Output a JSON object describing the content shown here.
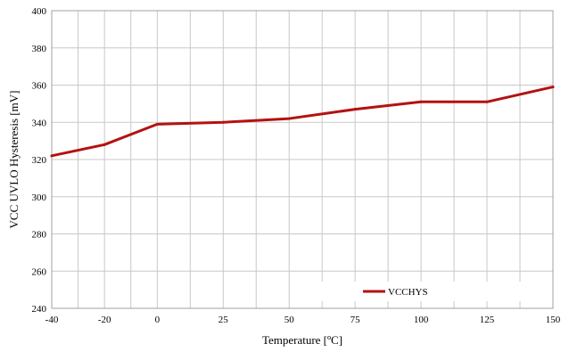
{
  "chart_data": {
    "type": "line",
    "x": [
      -40,
      -20,
      0,
      25,
      50,
      75,
      100,
      125,
      150
    ],
    "series": [
      {
        "name": "VCCHYS",
        "values": [
          322,
          328,
          339,
          340,
          342,
          347,
          351,
          351,
          359
        ],
        "color": "#b31212"
      }
    ],
    "xlabel": "Temperature [ºC]",
    "ylabel": "VCC UVLO Hysteresis [mV]",
    "xlim": [
      -40,
      150
    ],
    "ylim": [
      240,
      400
    ],
    "xticks": [
      -40,
      -20,
      0,
      25,
      50,
      75,
      100,
      125,
      150
    ],
    "xtick_labels": [
      "-40",
      "-20",
      "0",
      "25",
      "50",
      "75",
      "100",
      "125",
      "150"
    ],
    "x_minor_gridlines": [
      -30,
      -10,
      12.5,
      37.5,
      62.5,
      87.5,
      112.5,
      137.5
    ],
    "yticks": [
      240,
      260,
      280,
      300,
      320,
      340,
      360,
      380,
      400
    ],
    "ytick_labels": [
      "240",
      "260",
      "280",
      "300",
      "320",
      "340",
      "360",
      "380",
      "400"
    ],
    "grid": true,
    "legend_position": "bottom-right"
  }
}
